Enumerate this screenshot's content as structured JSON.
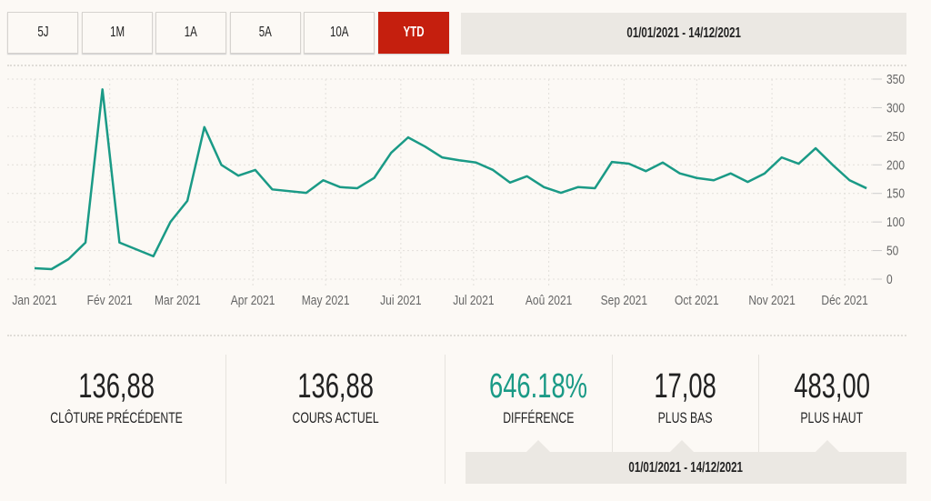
{
  "toolbar": {
    "buttons": [
      "5J",
      "1M",
      "1A",
      "5A",
      "10A",
      "YTD"
    ],
    "active": "YTD",
    "range": "01/01/2021 - 14/12/2021"
  },
  "colors": {
    "line": "#1a9a86",
    "accent": "#c51f0e",
    "positive": "#1a9a86"
  },
  "chart_data": {
    "type": "line",
    "title": "",
    "xlabel": "",
    "ylabel": "",
    "ylim": [
      0,
      350
    ],
    "yticks": [
      0,
      50,
      100,
      150,
      200,
      250,
      300,
      350
    ],
    "xticks": [
      {
        "date": "2021-01-01",
        "label": "Jan 2021"
      },
      {
        "date": "2021-02-01",
        "label": "Fév 2021"
      },
      {
        "date": "2021-03-01",
        "label": "Mar 2021"
      },
      {
        "date": "2021-04-01",
        "label": "Apr 2021"
      },
      {
        "date": "2021-05-01",
        "label": "May 2021"
      },
      {
        "date": "2021-06-01",
        "label": "Jui 2021"
      },
      {
        "date": "2021-07-01",
        "label": "Jul 2021"
      },
      {
        "date": "2021-08-01",
        "label": "Aoû 2021"
      },
      {
        "date": "2021-09-01",
        "label": "Sep 2021"
      },
      {
        "date": "2021-10-01",
        "label": "Oct 2021"
      },
      {
        "date": "2021-11-01",
        "label": "Nov 2021"
      },
      {
        "date": "2021-12-01",
        "label": "Déc 2021"
      }
    ],
    "grid": true,
    "x_day_of_year": [
      0,
      7,
      14,
      21,
      28,
      35,
      49,
      56,
      63,
      70,
      77,
      84,
      91,
      98,
      112,
      119,
      126,
      133,
      140,
      147,
      154,
      161,
      168,
      175,
      182,
      189,
      196,
      203,
      210,
      217,
      224,
      231,
      238,
      245,
      252,
      259,
      266,
      273,
      280,
      287,
      294,
      301,
      308,
      315,
      322,
      329,
      336,
      343
    ],
    "values": [
      19,
      17.5,
      35,
      64,
      332,
      64,
      40,
      100,
      137,
      266,
      200,
      181,
      191,
      157,
      151,
      173,
      161,
      159,
      177,
      221,
      248,
      232,
      213,
      208,
      204,
      191,
      169,
      180,
      161,
      151,
      161,
      159,
      205,
      202,
      189,
      204,
      185,
      177,
      173,
      185,
      170,
      185,
      213,
      202,
      229,
      200,
      173,
      159
    ]
  },
  "stats": [
    {
      "value": "136,88",
      "label": "CLÔTURE PRÉCÉDENTE"
    },
    {
      "value": "136,88",
      "label": "COURS ACTUEL"
    },
    {
      "value": "646.18%",
      "label": "DIFFÉRENCE"
    },
    {
      "value": "17,08",
      "label": "PLUS BAS"
    },
    {
      "value": "483,00",
      "label": "PLUS HAUT"
    }
  ],
  "stats_range": "01/01/2021 - 14/12/2021"
}
